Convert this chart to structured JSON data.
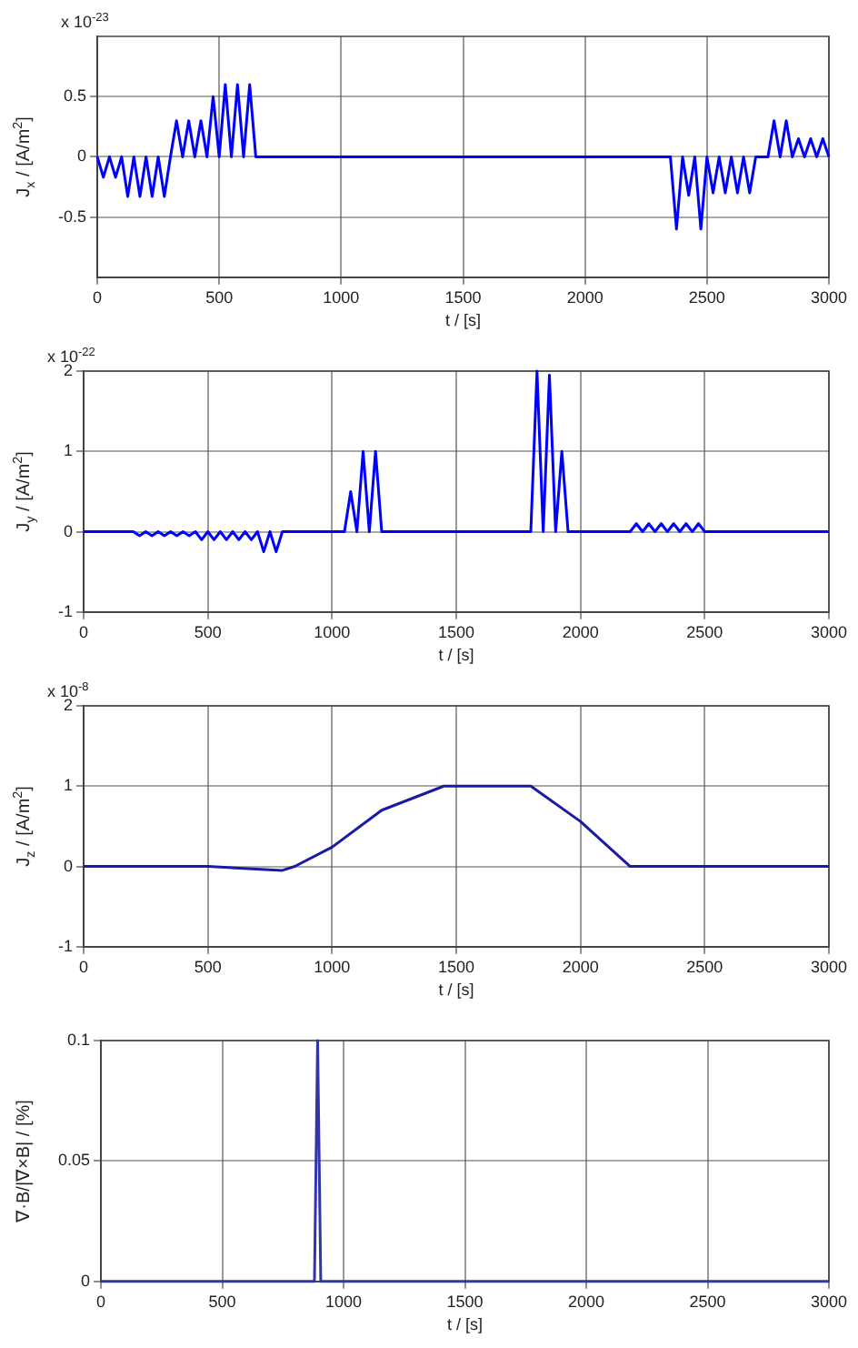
{
  "chart_data": [
    {
      "type": "line",
      "ylabel": "J$_{x}$ / [A/m$^{2}$]",
      "xlabel": "t / [s]",
      "annotations": [
        "x 10$^{-23}$"
      ],
      "x": [
        0,
        25,
        50,
        75,
        100,
        125,
        150,
        175,
        200,
        225,
        250,
        275,
        300,
        325,
        350,
        375,
        400,
        425,
        450,
        475,
        500,
        525,
        550,
        575,
        600,
        625,
        650,
        675,
        700,
        725,
        750,
        775,
        800,
        825,
        850,
        875,
        900,
        925,
        950,
        975,
        1000,
        1025,
        1050,
        1075,
        1100,
        1125,
        1150,
        1175,
        1200,
        1225,
        1250,
        1275,
        1300,
        1325,
        1350,
        1375,
        1400,
        1425,
        1450,
        1475,
        1500,
        1525,
        1550,
        1575,
        1600,
        1625,
        1650,
        1675,
        1700,
        1725,
        1750,
        1775,
        1800,
        1825,
        1850,
        1875,
        1900,
        1925,
        1950,
        1975,
        2000,
        2025,
        2050,
        2075,
        2100,
        2125,
        2150,
        2175,
        2200,
        2225,
        2250,
        2275,
        2300,
        2325,
        2350,
        2375,
        2400,
        2425,
        2450,
        2475,
        2500,
        2525,
        2550,
        2575,
        2600,
        2625,
        2650,
        2675,
        2700,
        2725,
        2750,
        2775,
        2800,
        2825,
        2850,
        2875,
        2900,
        2925,
        2950,
        2975,
        3000
      ],
      "series": [
        {
          "color": "#0000ff",
          "values": [
            0,
            -0.17,
            0,
            -0.17,
            0,
            -0.33,
            0,
            -0.33,
            0,
            -0.33,
            0,
            -0.33,
            0,
            0.3,
            0,
            0.3,
            0,
            0.3,
            0,
            0.5,
            0,
            0.6,
            0,
            0.6,
            0,
            0.6,
            0,
            0,
            0,
            0,
            0,
            0,
            0,
            0,
            0,
            0,
            0,
            0,
            0,
            0,
            0,
            0,
            0,
            0,
            0,
            0,
            0,
            0,
            0,
            0,
            0,
            0,
            0,
            0,
            0,
            0,
            0,
            0,
            0,
            0,
            0,
            0,
            0,
            0,
            0,
            0,
            0,
            0,
            0,
            0,
            0,
            0,
            0,
            0,
            0,
            0,
            0,
            0,
            0,
            0,
            0,
            0,
            0,
            0,
            0,
            0,
            0,
            0,
            0,
            0,
            0,
            0,
            0,
            0,
            0,
            -0.6,
            0,
            -0.32,
            0,
            -0.6,
            0,
            -0.3,
            0,
            -0.3,
            0,
            -0.3,
            0,
            -0.3,
            0,
            0,
            0,
            0.3,
            0,
            0.3,
            0,
            0.15,
            0,
            0.15,
            0,
            0.15,
            0
          ]
        }
      ],
      "xlim": [
        0,
        3000
      ],
      "xticks": [
        0,
        500,
        1000,
        1500,
        2000,
        2500,
        3000
      ],
      "ylim": [
        -1,
        1
      ],
      "yticks": [
        -0.5,
        0,
        0.5
      ],
      "grid": true,
      "marker": "none"
    },
    {
      "type": "line",
      "ylabel": "J$_{y}$ / [A/m$^{2}$]",
      "xlabel": "t / [s]",
      "annotations": [
        "x 10$^{-22}$"
      ],
      "x": [
        0,
        25,
        50,
        75,
        100,
        125,
        150,
        175,
        200,
        225,
        250,
        275,
        300,
        325,
        350,
        375,
        400,
        425,
        450,
        475,
        500,
        525,
        550,
        575,
        600,
        625,
        650,
        675,
        700,
        725,
        750,
        775,
        800,
        825,
        850,
        875,
        900,
        925,
        950,
        975,
        1000,
        1025,
        1050,
        1075,
        1100,
        1125,
        1150,
        1175,
        1200,
        1225,
        1250,
        1275,
        1300,
        1325,
        1350,
        1375,
        1400,
        1425,
        1450,
        1475,
        1500,
        1525,
        1550,
        1575,
        1600,
        1625,
        1650,
        1675,
        1700,
        1725,
        1750,
        1775,
        1800,
        1825,
        1850,
        1875,
        1900,
        1925,
        1950,
        1975,
        2000,
        2025,
        2050,
        2075,
        2100,
        2125,
        2150,
        2175,
        2200,
        2225,
        2250,
        2275,
        2300,
        2325,
        2350,
        2375,
        2400,
        2425,
        2450,
        2475,
        2500,
        2525,
        2550,
        2575,
        2600,
        2625,
        2650,
        2675,
        2700,
        2725,
        2750,
        2775,
        2800,
        2825,
        2850,
        2875,
        2900,
        2925,
        2950,
        2975,
        3000
      ],
      "series": [
        {
          "color": "#0000ff",
          "values": [
            0,
            0,
            0,
            0,
            0,
            0,
            0,
            0,
            0,
            -0.05,
            0,
            -0.05,
            0,
            -0.05,
            0,
            -0.05,
            0,
            -0.05,
            0,
            -0.1,
            0,
            -0.1,
            0,
            -0.1,
            0,
            -0.1,
            0,
            -0.1,
            0,
            -0.25,
            0,
            -0.25,
            0,
            0,
            0,
            0,
            0,
            0,
            0,
            0,
            0,
            0,
            0,
            0.5,
            0,
            1,
            0,
            1,
            0,
            0,
            0,
            0,
            0,
            0,
            0,
            0,
            0,
            0,
            0,
            0,
            0,
            0,
            0,
            0,
            0,
            0,
            0,
            0,
            0,
            0,
            0,
            0,
            0,
            2,
            0,
            1.95,
            0,
            1,
            0,
            0,
            0,
            0,
            0,
            0,
            0,
            0,
            0,
            0,
            0,
            0.1,
            0,
            0.1,
            0,
            0.1,
            0,
            0.1,
            0,
            0.1,
            0,
            0.1,
            0,
            0,
            0,
            0,
            0,
            0,
            0,
            0,
            0,
            0,
            0,
            0,
            0,
            0,
            0,
            0,
            0,
            0,
            0,
            0,
            0
          ]
        }
      ],
      "xlim": [
        0,
        3000
      ],
      "xticks": [
        0,
        500,
        1000,
        1500,
        2000,
        2500,
        3000
      ],
      "ylim": [
        -1,
        2
      ],
      "yticks": [
        -1,
        0,
        1,
        2
      ],
      "grid": true,
      "marker": "none"
    },
    {
      "type": "line",
      "ylabel": "J$_{z}$ / [A/m$^{2}$]",
      "xlabel": "t / [s]",
      "annotations": [
        "x 10$^{-8}$"
      ],
      "x": [
        0,
        500,
        800,
        850,
        1000,
        1200,
        1450,
        1800,
        2000,
        2200,
        2600,
        3000
      ],
      "series": [
        {
          "color": "#1a1aa6",
          "values": [
            0,
            0,
            -0.05,
            0,
            0.24,
            0.7,
            1,
            1,
            0.56,
            0,
            0,
            0
          ]
        }
      ],
      "xlim": [
        0,
        3000
      ],
      "xticks": [
        0,
        500,
        1000,
        1500,
        2000,
        2500,
        3000
      ],
      "ylim": [
        -1,
        2
      ],
      "yticks": [
        -1,
        0,
        1,
        2
      ],
      "grid": true,
      "marker": "none"
    },
    {
      "type": "line",
      "ylabel": "∇·B/|∇×B| / [%]",
      "xlabel": "t / [s]",
      "x": [
        0,
        880,
        893,
        906,
        3000
      ],
      "series": [
        {
          "color": "#3333aa",
          "values": [
            0,
            0,
            0.1,
            0,
            0
          ]
        }
      ],
      "xlim": [
        0,
        3000
      ],
      "xticks": [
        0,
        500,
        1000,
        1500,
        2000,
        2500,
        3000
      ],
      "ylim": [
        0,
        0.1
      ],
      "yticks": [
        0,
        0.05,
        0.1
      ],
      "grid": true,
      "marker": "none"
    }
  ]
}
